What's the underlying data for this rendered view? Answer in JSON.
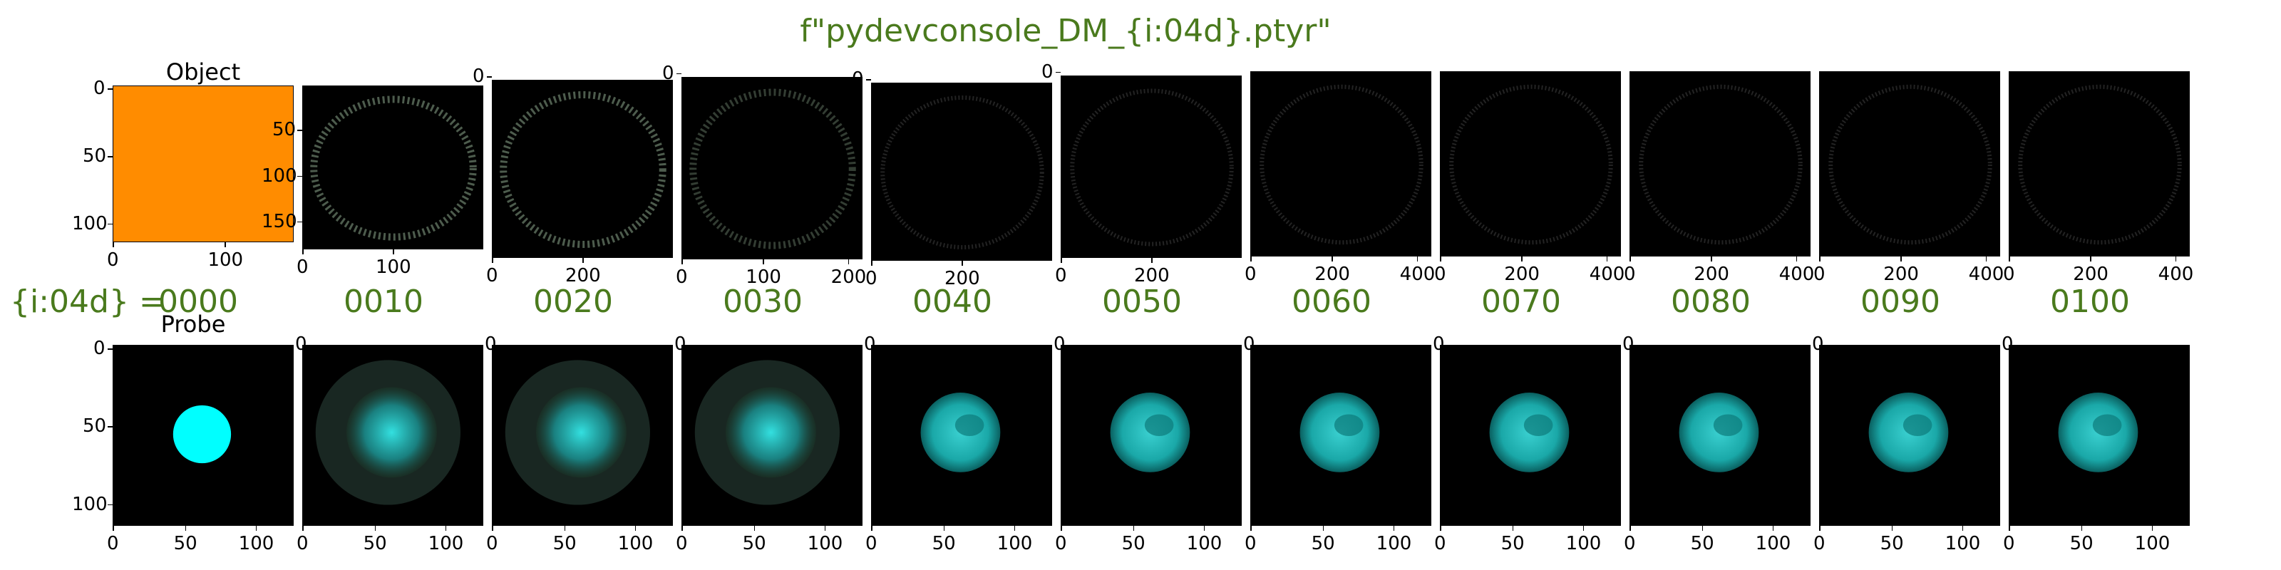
{
  "title": "f\"pydevconsole_DM_{i:04d}.ptyr\"",
  "row_label": "{i:04d} =",
  "object_title": "Object",
  "probe_title": "Probe",
  "iterations": [
    "0000",
    "0010",
    "0020",
    "0030",
    "0040",
    "0050",
    "0060",
    "0070",
    "0080",
    "0090",
    "0100"
  ],
  "colors": {
    "title_green": "#4a7a1d",
    "object_fill": "#ff8c00",
    "probe_cyan": "#00ffff",
    "background": "#000000"
  },
  "object_panels": [
    {
      "y_ticks": [
        "0",
        "50",
        "100"
      ],
      "x_ticks": [
        "0",
        "100"
      ]
    },
    {
      "y_ticks": [
        "50",
        "100",
        "150"
      ],
      "x_ticks": [
        "0",
        "100"
      ]
    },
    {
      "y_ticks": [
        "0"
      ],
      "x_ticks": [
        "0",
        "200"
      ]
    },
    {
      "y_ticks": [
        "0"
      ],
      "x_ticks": [
        "0",
        "100",
        "200"
      ]
    },
    {
      "y_ticks": [
        "0"
      ],
      "x_ticks": [
        "0",
        "200"
      ]
    },
    {
      "y_ticks": [
        "0"
      ],
      "x_ticks": [
        "0",
        "200"
      ]
    },
    {
      "y_ticks": [],
      "x_ticks": [
        "0",
        "200",
        "400"
      ]
    },
    {
      "y_ticks": [],
      "x_ticks": [
        "0",
        "200",
        "400"
      ]
    },
    {
      "y_ticks": [],
      "x_ticks": [
        "0",
        "200",
        "400"
      ]
    },
    {
      "y_ticks": [],
      "x_ticks": [
        "0",
        "200",
        "400"
      ]
    },
    {
      "y_ticks": [],
      "x_ticks": [
        "0",
        "200",
        "400"
      ]
    }
  ],
  "probe_panels": {
    "first_y_ticks": [
      "0",
      "50",
      "100"
    ],
    "x_ticks": [
      "0",
      "50",
      "100"
    ]
  }
}
